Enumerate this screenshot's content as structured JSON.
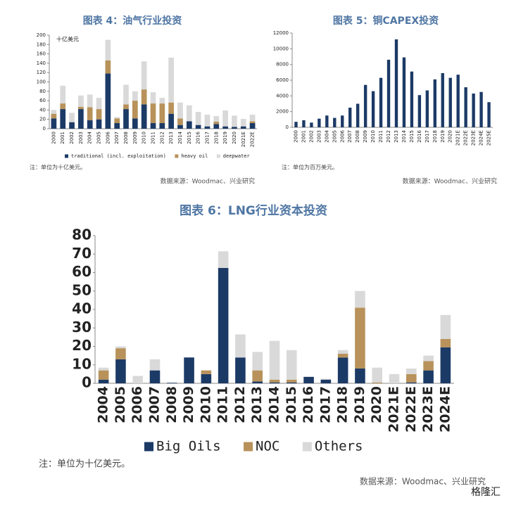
{
  "chart_data": [
    {
      "type": "bar",
      "stacked": true,
      "title": "图表 4：油气行业投资",
      "unit_label": "十亿美元",
      "categories": [
        "2000",
        "2001",
        "2002",
        "2003",
        "2004",
        "2005",
        "2006",
        "2007",
        "2008",
        "2009",
        "2010",
        "2011",
        "2012",
        "2013",
        "2014",
        "2015",
        "2016",
        "2017",
        "2018",
        "2019",
        "2020",
        "2021E",
        "2022E"
      ],
      "series": [
        {
          "name": "traditional (incl. exploitation)",
          "color": "#1c3a66",
          "values": [
            22,
            42,
            14,
            42,
            18,
            20,
            118,
            12,
            42,
            22,
            52,
            12,
            12,
            32,
            8,
            16,
            8,
            5,
            10,
            5,
            4,
            5,
            12
          ]
        },
        {
          "name": "heavy oil",
          "color": "#b8925a",
          "values": [
            10,
            12,
            0,
            5,
            28,
            22,
            28,
            10,
            10,
            38,
            32,
            42,
            42,
            24,
            14,
            0,
            0,
            0,
            5,
            0,
            0,
            0,
            4
          ]
        },
        {
          "name": "deepwater",
          "color": "#d9d9d9",
          "values": [
            8,
            38,
            20,
            24,
            27,
            24,
            44,
            3,
            42,
            20,
            60,
            24,
            12,
            96,
            34,
            34,
            28,
            25,
            12,
            34,
            24,
            16,
            14
          ]
        }
      ],
      "ylim": [
        0,
        200
      ],
      "yticks": [
        0,
        20,
        40,
        60,
        80,
        100,
        120,
        140,
        160,
        180,
        200
      ],
      "note": "注：单位为十亿美元。",
      "source": "数据来源：Woodmac、兴业研究"
    },
    {
      "type": "bar",
      "title": "图表 5：铜CAPEX投资",
      "color": "#1c3a66",
      "categories": [
        "2000",
        "2001",
        "2002",
        "2003",
        "2004",
        "2005",
        "2006",
        "2007",
        "2008",
        "2009",
        "2010",
        "2011",
        "2012",
        "2013",
        "2014",
        "2015",
        "2016",
        "2017",
        "2018",
        "2019",
        "2020",
        "2021E",
        "2022E",
        "2023E",
        "2024E",
        "2025E"
      ],
      "values": [
        700,
        900,
        600,
        1100,
        1500,
        1200,
        1500,
        2500,
        3000,
        5400,
        4600,
        6300,
        8600,
        11200,
        8900,
        7100,
        4100,
        4700,
        6100,
        6900,
        6300,
        6700,
        5100,
        4300,
        4500,
        3200
      ],
      "ylim": [
        0,
        12000
      ],
      "yticks": [
        0,
        2000,
        4000,
        6000,
        8000,
        10000,
        12000
      ],
      "note": "注：单位为百万美元。",
      "source": "数据来源：Woodmac、兴业研究"
    },
    {
      "type": "bar",
      "stacked": true,
      "title": "图表 6：LNG行业资本投资",
      "categories": [
        "2004",
        "2005",
        "2006",
        "2007",
        "2008",
        "2009",
        "2010",
        "2011",
        "2012",
        "2013",
        "2014",
        "2015",
        "2016",
        "2017",
        "2018",
        "2019",
        "2020",
        "2021E",
        "2022E",
        "2023E",
        "2024E"
      ],
      "series": [
        {
          "name": "Big Oils",
          "color": "#1c3a66",
          "values": [
            2,
            13,
            0,
            7,
            0.3,
            14,
            5,
            62.5,
            14,
            1,
            0.5,
            0.5,
            3.5,
            2,
            14,
            8,
            0,
            0,
            0.5,
            7,
            19.5
          ]
        },
        {
          "name": "NOC",
          "color": "#b8925a",
          "values": [
            5,
            6,
            0,
            0,
            0,
            0,
            2,
            0,
            0,
            6,
            1.5,
            1.5,
            0,
            0,
            2,
            33,
            0.5,
            0,
            4.5,
            5,
            4.5
          ]
        },
        {
          "name": "Others",
          "color": "#d9d9d9",
          "values": [
            1.5,
            1,
            4,
            6,
            0,
            0,
            0,
            9,
            12.5,
            10,
            21,
            16,
            0,
            0.5,
            2,
            9,
            8,
            5,
            3,
            3,
            13
          ]
        }
      ],
      "ylim": [
        0,
        80
      ],
      "yticks": [
        0,
        10,
        20,
        30,
        40,
        50,
        60,
        70,
        80
      ],
      "note": "注：单位为十亿美元。",
      "source": "数据来源：Woodmac、兴业研究"
    }
  ],
  "watermark": "格隆汇"
}
